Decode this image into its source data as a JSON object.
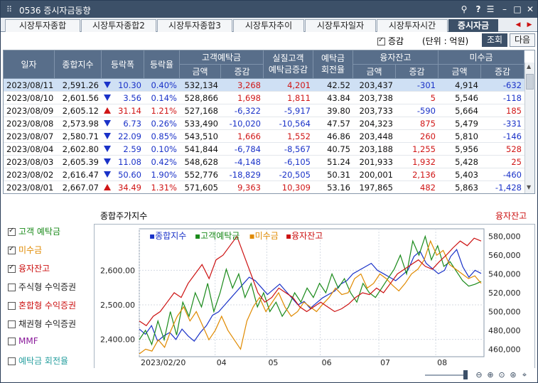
{
  "window": {
    "title": "0536 증시자금동향"
  },
  "tabs": [
    {
      "label": "시장투자종합",
      "active": false
    },
    {
      "label": "시장투자종합2",
      "active": false
    },
    {
      "label": "시장투자종합3",
      "active": false
    },
    {
      "label": "시장투자추이",
      "active": false
    },
    {
      "label": "시장투자일자",
      "active": false
    },
    {
      "label": "시장투자시간",
      "active": false
    },
    {
      "label": "증시자금",
      "active": true
    }
  ],
  "options": {
    "change_label": "증감",
    "change_checked": true,
    "unit_label": "(단위 : 억원)",
    "query_button": "조회",
    "next_button": "다음"
  },
  "table": {
    "headers": {
      "date": "일자",
      "composite": "종합지수",
      "change": "등락폭",
      "rate": "등락율",
      "deposit": "고객예탁금",
      "real_deposit": "실질고객\n예탁금증감",
      "turnover": "예탁금\n회전율",
      "margin": "융자잔고",
      "unpaid": "미수금",
      "amount": "금액",
      "delta": "증감"
    },
    "rows": [
      {
        "date": "2023/08/11",
        "index": "2,591.26",
        "dir": "dn",
        "change": "10.30",
        "rate": "0.40%",
        "deposit": "532,134",
        "deposit_delta": "3,268",
        "real_delta": "4,201",
        "turnover": "42.52",
        "margin": "203,437",
        "margin_delta": "-301",
        "unpaid": "4,914",
        "unpaid_delta": "-632",
        "selected": true
      },
      {
        "date": "2023/08/10",
        "index": "2,601.56",
        "dir": "dn",
        "change": "3.56",
        "rate": "0.14%",
        "deposit": "528,866",
        "deposit_delta": "1,698",
        "real_delta": "1,811",
        "turnover": "43.84",
        "margin": "203,738",
        "margin_delta": "5",
        "unpaid": "5,546",
        "unpaid_delta": "-118",
        "selected": false
      },
      {
        "date": "2023/08/09",
        "index": "2,605.12",
        "dir": "up",
        "change": "31.14",
        "rate": "1.21%",
        "deposit": "527,168",
        "deposit_delta": "-6,322",
        "real_delta": "-5,917",
        "turnover": "39.80",
        "margin": "203,733",
        "margin_delta": "-590",
        "unpaid": "5,664",
        "unpaid_delta": "185",
        "selected": false
      },
      {
        "date": "2023/08/08",
        "index": "2,573.98",
        "dir": "dn",
        "change": "6.73",
        "rate": "0.26%",
        "deposit": "533,490",
        "deposit_delta": "-10,020",
        "real_delta": "-10,564",
        "turnover": "47.57",
        "margin": "204,323",
        "margin_delta": "875",
        "unpaid": "5,479",
        "unpaid_delta": "-331",
        "selected": false
      },
      {
        "date": "2023/08/07",
        "index": "2,580.71",
        "dir": "dn",
        "change": "22.09",
        "rate": "0.85%",
        "deposit": "543,510",
        "deposit_delta": "1,666",
        "real_delta": "1,552",
        "turnover": "46.86",
        "margin": "203,448",
        "margin_delta": "260",
        "unpaid": "5,810",
        "unpaid_delta": "-146",
        "selected": false
      },
      {
        "date": "2023/08/04",
        "index": "2,602.80",
        "dir": "dn",
        "change": "2.59",
        "rate": "0.10%",
        "deposit": "541,844",
        "deposit_delta": "-6,784",
        "real_delta": "-8,567",
        "turnover": "40.75",
        "margin": "203,188",
        "margin_delta": "1,255",
        "unpaid": "5,956",
        "unpaid_delta": "528",
        "selected": false
      },
      {
        "date": "2023/08/03",
        "index": "2,605.39",
        "dir": "dn",
        "change": "11.08",
        "rate": "0.42%",
        "deposit": "548,628",
        "deposit_delta": "-4,148",
        "real_delta": "-6,105",
        "turnover": "51.24",
        "margin": "201,933",
        "margin_delta": "1,932",
        "unpaid": "5,428",
        "unpaid_delta": "25",
        "selected": false
      },
      {
        "date": "2023/08/02",
        "index": "2,616.47",
        "dir": "dn",
        "change": "50.60",
        "rate": "1.90%",
        "deposit": "552,776",
        "deposit_delta": "-18,829",
        "real_delta": "-20,505",
        "turnover": "50.31",
        "margin": "200,001",
        "margin_delta": "2,136",
        "unpaid": "5,403",
        "unpaid_delta": "-460",
        "selected": false
      },
      {
        "date": "2023/08/01",
        "index": "2,667.07",
        "dir": "up",
        "change": "34.49",
        "rate": "1.31%",
        "deposit": "571,605",
        "deposit_delta": "9,363",
        "real_delta": "10,309",
        "turnover": "53.16",
        "margin": "197,865",
        "margin_delta": "482",
        "unpaid": "5,863",
        "unpaid_delta": "-1,428",
        "selected": false
      }
    ]
  },
  "legend_checks": [
    {
      "label": "고객 예탁금",
      "checked": true,
      "color": "#1a8a1a"
    },
    {
      "label": "미수금",
      "checked": true,
      "color": "#e08a00"
    },
    {
      "label": "융자잔고",
      "checked": true,
      "color": "#cc1111"
    },
    {
      "label": "주식형 수익증권",
      "checked": false,
      "color": "#222222"
    },
    {
      "label": "혼합형 수익증권",
      "checked": false,
      "color": "#cc1111"
    },
    {
      "label": "채권형 수익증권",
      "checked": false,
      "color": "#222222"
    },
    {
      "label": "MMF",
      "checked": false,
      "color": "#8a1a9a"
    },
    {
      "label": "예탁금 회전율",
      "checked": false,
      "color": "#2aa0a0"
    }
  ],
  "chart_labels": {
    "left_title": "종합주가지수",
    "right_title": "융자잔고"
  },
  "chart_data": {
    "type": "line",
    "legend": [
      {
        "name": "종합지수",
        "color": "#1a32c8"
      },
      {
        "name": "고객예탁금",
        "color": "#1a8a1a"
      },
      {
        "name": "미수금",
        "color": "#e08a00"
      },
      {
        "name": "융자잔고",
        "color": "#cc1111"
      }
    ],
    "left_axis": {
      "ticks": [
        "2,600.00",
        "2,500.00",
        "2,400.00"
      ],
      "values": [
        2600,
        2500,
        2400
      ],
      "range": [
        2350,
        2720
      ]
    },
    "right_axis": {
      "ticks": [
        "580,000",
        "560,000",
        "540,000",
        "520,000",
        "500,000",
        "480,000",
        "460,000"
      ],
      "values": [
        580000,
        560000,
        540000,
        520000,
        500000,
        480000,
        460000
      ],
      "range": [
        452000,
        588000
      ]
    },
    "x_ticks": [
      "2023/02/20",
      "04",
      "05",
      "06",
      "07",
      "08"
    ],
    "x_tick_pos": [
      0,
      0.22,
      0.37,
      0.525,
      0.695,
      0.86
    ],
    "series": [
      {
        "name": "종합지수",
        "axis": "left",
        "values": [
          2430,
          2415,
          2440,
          2395,
          2410,
          2420,
          2400,
          2430,
          2410,
          2395,
          2420,
          2440,
          2470,
          2480,
          2500,
          2520,
          2540,
          2560,
          2580,
          2570,
          2550,
          2530,
          2545,
          2560,
          2540,
          2520,
          2500,
          2510,
          2490,
          2505,
          2520,
          2530,
          2540,
          2560,
          2570,
          2590,
          2600,
          2610,
          2620,
          2600,
          2590,
          2580,
          2570,
          2585,
          2600,
          2640,
          2655,
          2620,
          2605,
          2590,
          2600,
          2640,
          2660,
          2610,
          2580,
          2600,
          2591
        ]
      },
      {
        "name": "고객예탁금",
        "axis": "right",
        "values": [
          470000,
          480000,
          465000,
          490000,
          470000,
          500000,
          475000,
          510000,
          495000,
          520000,
          505000,
          530000,
          500000,
          520000,
          545000,
          525000,
          540000,
          515000,
          530000,
          505000,
          520000,
          500000,
          510000,
          495000,
          505000,
          520000,
          510000,
          525000,
          515000,
          530000,
          520000,
          540000,
          525000,
          535000,
          520000,
          510000,
          530000,
          520000,
          515000,
          525000,
          535000,
          545000,
          560000,
          540000,
          575000,
          560000,
          580000,
          555000,
          570000,
          548000,
          553000,
          543000,
          533000,
          527000,
          529000,
          532000
        ]
      },
      {
        "name": "미수금",
        "axis": "right",
        "values": [
          455000,
          460000,
          458000,
          470000,
          462000,
          480000,
          495000,
          505000,
          490000,
          500000,
          485000,
          470000,
          480000,
          495000,
          480000,
          470000,
          460000,
          490000,
          505000,
          515000,
          500000,
          510000,
          520000,
          505000,
          495000,
          500000,
          510000,
          505000,
          500000,
          508000,
          515000,
          525000,
          518000,
          520000,
          535000,
          540000,
          525000,
          530000,
          540000,
          535000,
          528000,
          522000,
          530000,
          540000,
          545000,
          555000,
          575000,
          560000,
          565000,
          550000,
          545000,
          540000,
          535000,
          538000,
          530000
        ]
      },
      {
        "name": "융자잔고",
        "axis": "right",
        "values": [
          490000,
          485000,
          495000,
          500000,
          510000,
          520000,
          515000,
          530000,
          540000,
          550000,
          535000,
          555000,
          560000,
          570000,
          580000,
          560000,
          540000,
          520000,
          510000,
          515000,
          525000,
          520000,
          515000,
          505000,
          500000,
          505000,
          510000,
          505000,
          500000,
          503000,
          508000,
          515000,
          520000,
          518000,
          525000,
          520000,
          530000,
          540000,
          545000,
          550000,
          555000,
          548000,
          545000,
          553000,
          560000,
          568000,
          575000,
          570000,
          578000,
          575000
        ]
      }
    ]
  }
}
